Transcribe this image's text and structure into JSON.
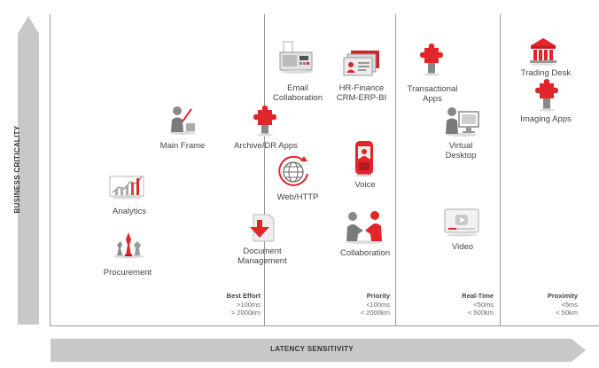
{
  "axes": {
    "y_label": "BUSINESS CRITICALITY",
    "x_label": "LATENCY SENSITIVITY"
  },
  "zones": [
    {
      "title": "Best Effort",
      "line1": ">100ms",
      "line2": "> 2000km"
    },
    {
      "title": "Priority",
      "line1": "<100ms",
      "line2": "< 2000km"
    },
    {
      "title": "Real-Time",
      "line1": "<50ms",
      "line2": "< 500km"
    },
    {
      "title": "Proximity",
      "line1": "<5ms",
      "line2": "< 50km"
    }
  ],
  "apps": {
    "procurement": "Procurement",
    "analytics": "Analytics",
    "main_frame": "Main Frame",
    "archive": "Archive/DR Apps",
    "document_l1": "Document",
    "document_l2": "Management",
    "email_l1": "Email",
    "email_l2": "Collaboration",
    "hr_l1": "HR-Finance",
    "hr_l2": "CRM-ERP-BI",
    "web": "Web/HTTP",
    "voice": "Voice",
    "collaboration": "Collaboration",
    "transactional_l1": "Transactional",
    "transactional_l2": "Apps",
    "virtual_l1": "Virtual",
    "virtual_l2": "Desktop",
    "video": "Video",
    "trading": "Trading Desk",
    "imaging": "Imaging Apps"
  },
  "colors": {
    "accent_red": "#e0252b",
    "axis_gray": "#c8c8c8",
    "icon_gray": "#8a8a8a"
  }
}
